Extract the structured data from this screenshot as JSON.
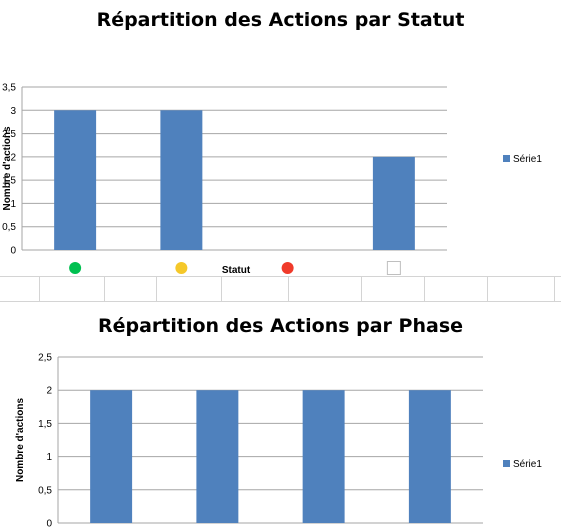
{
  "colors": {
    "bar": "#4f81bd",
    "grid": "#a6a6a6",
    "status_green": "#00c050",
    "status_yellow": "#f5c82a",
    "status_red": "#f03a2a",
    "status_empty": "#ffffff"
  },
  "chart_data": [
    {
      "type": "bar",
      "title": "Répartition des Actions par Statut",
      "xlabel": "Statut",
      "ylabel": "Nombre d'actions",
      "ytick_labels": [
        "0",
        "0,5",
        "1",
        "1,5",
        "2",
        "2,5",
        "3",
        "3,5"
      ],
      "ylim": [
        0,
        3.5
      ],
      "categories": [
        "green-circle",
        "yellow-circle",
        "red-circle",
        "empty-square"
      ],
      "category_icons": [
        "green-circle-icon",
        "yellow-circle-icon",
        "red-circle-icon",
        "empty-square-icon"
      ],
      "series": [
        {
          "name": "Série1",
          "values": [
            3,
            3,
            0,
            2
          ]
        }
      ],
      "legend": "right",
      "grid": true
    },
    {
      "type": "bar",
      "title": "Répartition des Actions par Phase",
      "xlabel": "",
      "ylabel": "Nombre d'actions",
      "ytick_labels": [
        "0",
        "0,5",
        "1",
        "1,5",
        "2",
        "2,5"
      ],
      "ylim": [
        0,
        2.5
      ],
      "categories": [
        "",
        "",
        "",
        ""
      ],
      "series": [
        {
          "name": "Série1",
          "values": [
            2,
            2,
            2,
            2
          ]
        }
      ],
      "legend": "right",
      "grid": true
    }
  ]
}
